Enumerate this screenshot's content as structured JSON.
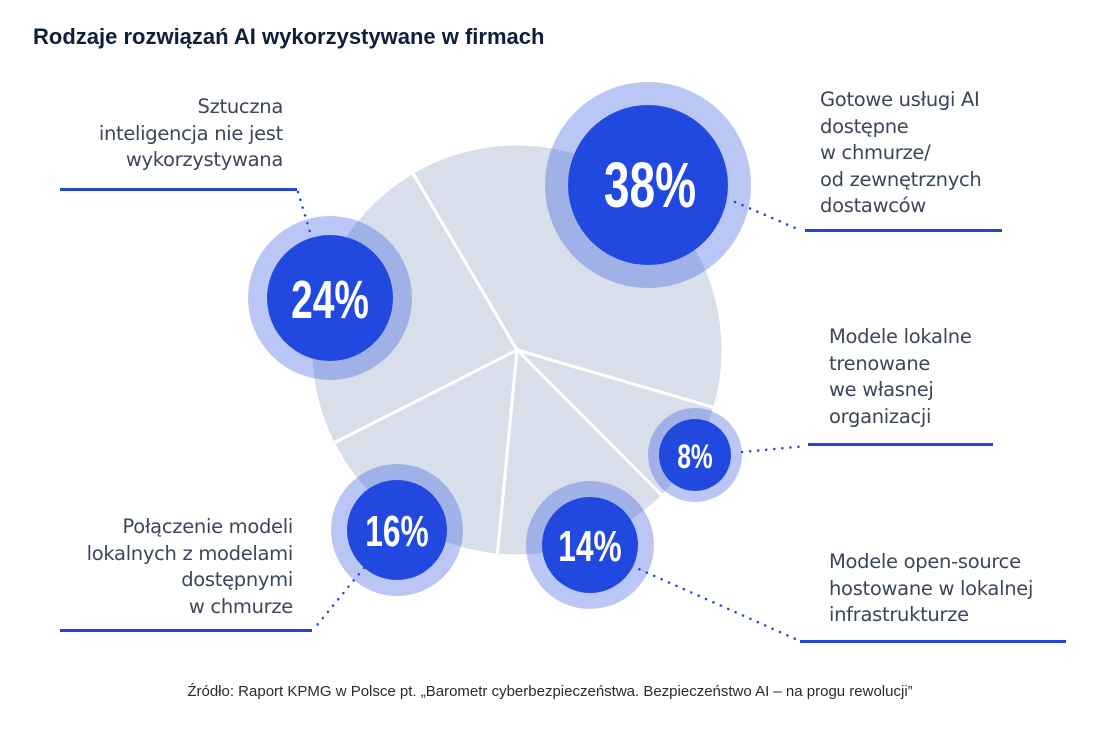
{
  "title": "Rodzaje rozwiązań AI wykorzystywane w firmach",
  "source": "Źródło: Raport KPMG w Polsce pt. „Barometr cyberbezpieczeństwa. Bezpieczeństwo AI – na progu rewolucji”",
  "colors": {
    "pie": "#d8dfeb",
    "bubble": "#2149e0",
    "ring": "#b8c5f2",
    "line": "#2246d6",
    "text": "#3b4759"
  },
  "chart_data": {
    "type": "pie",
    "title": "Rodzaje rozwiązań AI wykorzystywane w firmach",
    "categories": [
      "Gotowe usługi AI dostępne w chmurze/ od zewnętrznych dostawców",
      "Modele lokalne trenowane we własnej organizacji",
      "Modele open-source hostowane w lokalnej infrastrukturze",
      "Połączenie modeli lokalnych z modelami dostępnymi w chmurze",
      "Sztuczna inteligencja nie jest wykorzystywana"
    ],
    "values": [
      38,
      8,
      14,
      16,
      24
    ],
    "data_labels": [
      "38%",
      "8%",
      "14%",
      "16%",
      "24%"
    ],
    "label_lines": [
      [
        "Gotowe usługi AI",
        "dostępne",
        "w chmurze/",
        "od zewnętrznych",
        "dostawców"
      ],
      [
        "Modele lokalne",
        "trenowane",
        "we własnej",
        "organizacji"
      ],
      [
        "Modele open-source",
        "hostowane w lokalnej",
        "infrastrukturze"
      ],
      [
        "Połączenie modeli",
        "lokalnych z modelami",
        "dostępnymi",
        "w chmurze"
      ],
      [
        "Sztuczna",
        "inteligencja nie jest",
        "wykorzystywana"
      ]
    ]
  }
}
